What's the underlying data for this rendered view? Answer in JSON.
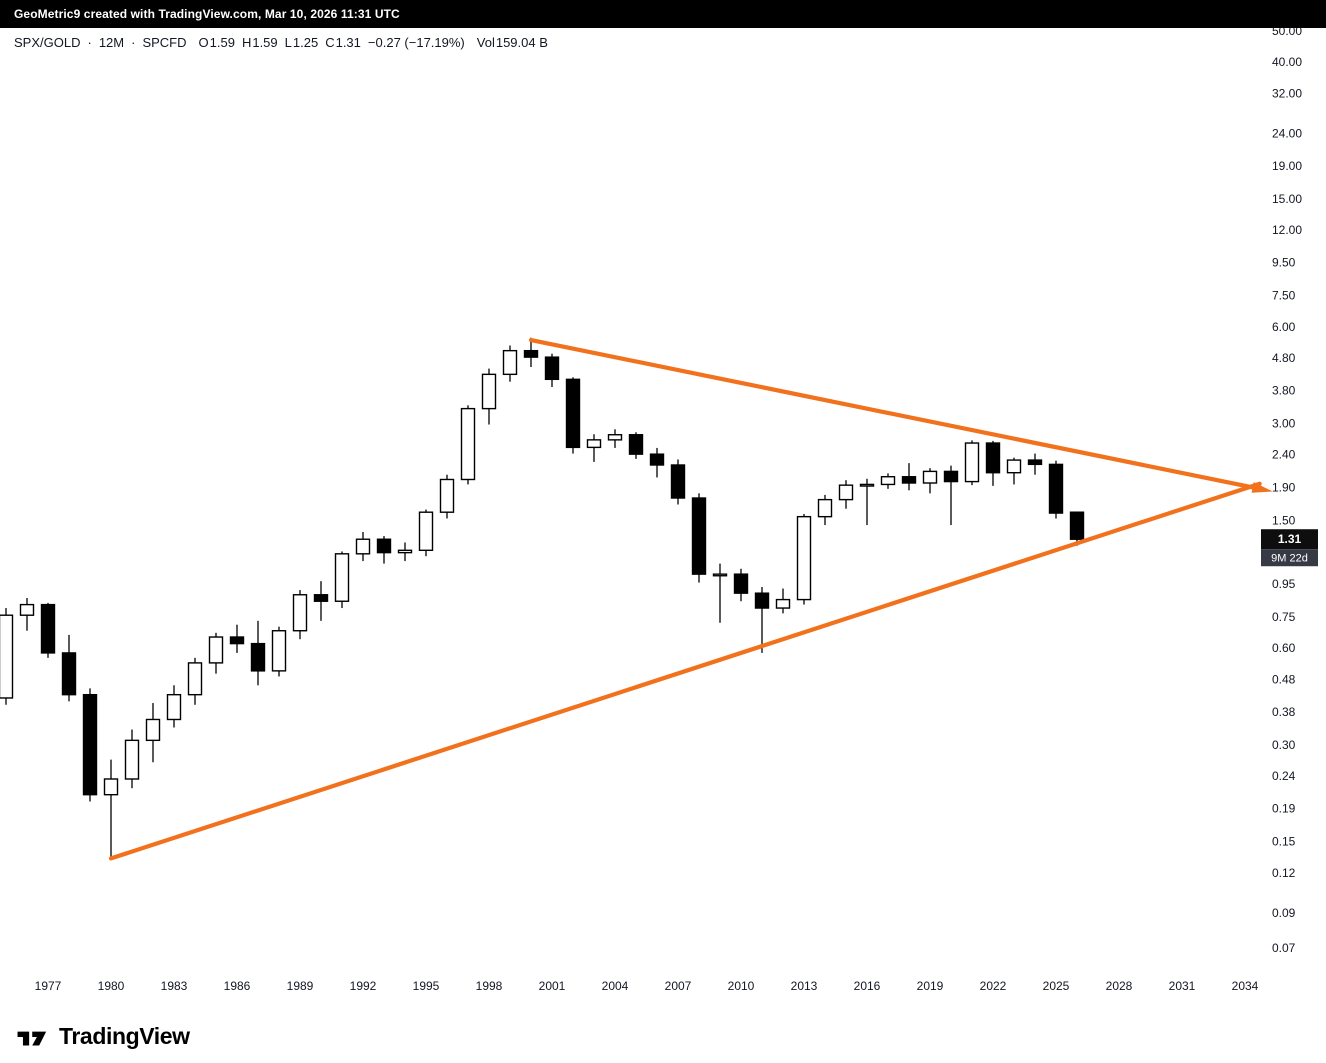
{
  "header": {
    "text": "GeoMetric9 created with TradingView.com, Mar 10, 2026 11:31 UTC"
  },
  "legend": {
    "symbol": "SPX/GOLD",
    "separator": "·",
    "interval": "12M",
    "exchange": "SPCFD",
    "open_label": "O",
    "open": "1.59",
    "high_label": "H",
    "high": "1.59",
    "low_label": "L",
    "low": "1.25",
    "close_label": "C",
    "close": "1.31",
    "change": "−0.27 (−17.19%)",
    "volume_label": "Vol",
    "volume": "159.04 B"
  },
  "price_scale": {
    "ticks": [
      "50.00",
      "40.00",
      "32.00",
      "24.00",
      "19.00",
      "15.00",
      "12.00",
      "9.50",
      "7.50",
      "6.00",
      "4.80",
      "3.80",
      "3.00",
      "2.40",
      "1.90",
      "1.50",
      "0.95",
      "0.75",
      "0.60",
      "0.48",
      "0.38",
      "0.30",
      "0.24",
      "0.19",
      "0.15",
      "0.12",
      "0.09",
      "0.07"
    ],
    "last_price": "1.31",
    "countdown": "9M 22d"
  },
  "time_scale": {
    "ticks": [
      "1977",
      "1980",
      "1983",
      "1986",
      "1989",
      "1992",
      "1995",
      "1998",
      "2001",
      "2004",
      "2007",
      "2010",
      "2013",
      "2016",
      "2019",
      "2022",
      "2025",
      "2028",
      "2031",
      "2034"
    ]
  },
  "chart_data": {
    "type": "candlestick",
    "title": "SPX/GOLD · 12M · SPCFD",
    "scale": "log",
    "ylim": [
      0.07,
      50
    ],
    "xlim_years": [
      1975,
      2035.5
    ],
    "grid": false,
    "legend_position": "top-left",
    "up_color": "#ffffff",
    "down_color": "#000000",
    "wick_color": "#000000",
    "candles_columns": [
      "year",
      "open",
      "high",
      "low",
      "close"
    ],
    "candles": [
      [
        1975,
        0.42,
        0.8,
        0.4,
        0.76
      ],
      [
        1976,
        0.76,
        0.86,
        0.68,
        0.82
      ],
      [
        1977,
        0.82,
        0.83,
        0.56,
        0.58
      ],
      [
        1978,
        0.58,
        0.66,
        0.41,
        0.43
      ],
      [
        1979,
        0.43,
        0.45,
        0.2,
        0.21
      ],
      [
        1980,
        0.21,
        0.27,
        0.133,
        0.235
      ],
      [
        1981,
        0.235,
        0.335,
        0.22,
        0.31
      ],
      [
        1982,
        0.31,
        0.405,
        0.265,
        0.36
      ],
      [
        1983,
        0.36,
        0.46,
        0.34,
        0.43
      ],
      [
        1984,
        0.43,
        0.56,
        0.4,
        0.54
      ],
      [
        1985,
        0.54,
        0.67,
        0.5,
        0.65
      ],
      [
        1986,
        0.65,
        0.71,
        0.58,
        0.62
      ],
      [
        1987,
        0.62,
        0.73,
        0.46,
        0.51
      ],
      [
        1988,
        0.51,
        0.7,
        0.49,
        0.68
      ],
      [
        1989,
        0.68,
        0.91,
        0.64,
        0.88
      ],
      [
        1990,
        0.88,
        0.97,
        0.73,
        0.84
      ],
      [
        1991,
        0.84,
        1.2,
        0.8,
        1.18
      ],
      [
        1992,
        1.18,
        1.38,
        1.12,
        1.31
      ],
      [
        1993,
        1.31,
        1.34,
        1.1,
        1.19
      ],
      [
        1994,
        1.19,
        1.28,
        1.12,
        1.21
      ],
      [
        1995,
        1.21,
        1.62,
        1.16,
        1.59
      ],
      [
        1996,
        1.59,
        2.08,
        1.52,
        2.01
      ],
      [
        1997,
        2.01,
        3.42,
        1.94,
        3.34
      ],
      [
        1998,
        3.34,
        4.45,
        2.98,
        4.27
      ],
      [
        1999,
        4.27,
        5.25,
        4.05,
        5.06
      ],
      [
        2000,
        5.06,
        5.55,
        4.5,
        4.83
      ],
      [
        2001,
        4.83,
        4.95,
        3.9,
        4.12
      ],
      [
        2002,
        4.12,
        4.18,
        2.42,
        2.53
      ],
      [
        2003,
        2.53,
        2.78,
        2.28,
        2.67
      ],
      [
        2004,
        2.67,
        2.88,
        2.52,
        2.77
      ],
      [
        2005,
        2.77,
        2.82,
        2.33,
        2.41
      ],
      [
        2006,
        2.41,
        2.52,
        2.04,
        2.23
      ],
      [
        2007,
        2.23,
        2.32,
        1.68,
        1.76
      ],
      [
        2008,
        1.76,
        1.82,
        0.96,
        1.02
      ],
      [
        2009,
        1.02,
        1.1,
        0.72,
        1.02
      ],
      [
        2010,
        1.02,
        1.06,
        0.84,
        0.89
      ],
      [
        2011,
        0.89,
        0.93,
        0.58,
        0.8
      ],
      [
        2012,
        0.8,
        0.92,
        0.77,
        0.85
      ],
      [
        2013,
        0.85,
        1.57,
        0.82,
        1.54
      ],
      [
        2014,
        1.54,
        1.8,
        1.45,
        1.74
      ],
      [
        2015,
        1.74,
        2.0,
        1.63,
        1.93
      ],
      [
        2016,
        1.93,
        2.02,
        1.45,
        1.94
      ],
      [
        2017,
        1.94,
        2.1,
        1.88,
        2.05
      ],
      [
        2018,
        2.05,
        2.26,
        1.86,
        1.96
      ],
      [
        2019,
        1.96,
        2.18,
        1.82,
        2.13
      ],
      [
        2020,
        2.13,
        2.22,
        1.45,
        1.98
      ],
      [
        2021,
        1.98,
        2.66,
        1.93,
        2.61
      ],
      [
        2022,
        2.61,
        2.65,
        1.92,
        2.11
      ],
      [
        2023,
        2.11,
        2.35,
        1.94,
        2.31
      ],
      [
        2024,
        2.31,
        2.42,
        2.08,
        2.24
      ],
      [
        2025,
        2.24,
        2.3,
        1.52,
        1.58
      ],
      [
        2026,
        1.59,
        1.59,
        1.25,
        1.31
      ]
    ],
    "trendlines": [
      {
        "name": "upper",
        "x1": 2000.0,
        "y1": 5.46,
        "x2": 2034.7,
        "y2": 1.88,
        "color": "#f2711c",
        "width": 4.2,
        "arrow_end": true
      },
      {
        "name": "lower",
        "x1": 1980.0,
        "y1": 0.133,
        "x2": 2034.7,
        "y2": 1.95,
        "color": "#f2711c",
        "width": 4.2,
        "arrow_end": false
      }
    ]
  },
  "footer": {
    "brand": "TradingView"
  }
}
